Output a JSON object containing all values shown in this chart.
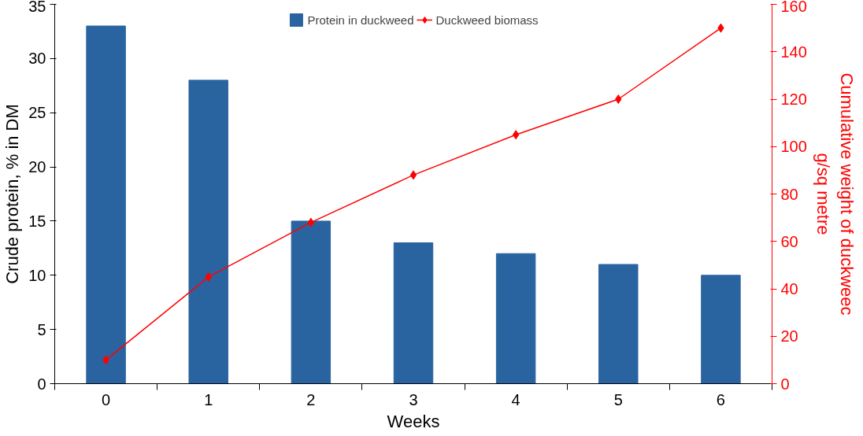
{
  "chart_data": {
    "type": "bar",
    "xlabel": "Weeks",
    "ylabel": "Crude protein, % in DM",
    "y2label": "Cumulative weight of duckweec\ng/sq metre",
    "categories": [
      "0",
      "1",
      "2",
      "3",
      "4",
      "5",
      "6"
    ],
    "series": [
      {
        "name": "Protein in duckweed",
        "color": "#2a64a0",
        "values": [
          33,
          28,
          15,
          13,
          12,
          11,
          10
        ]
      },
      {
        "name": "Duckweed biomass",
        "type": "line",
        "axis": "y2",
        "color": "#ff0000",
        "marker": "diamond",
        "values": [
          10,
          45,
          68,
          88,
          105,
          120,
          150
        ]
      }
    ],
    "ylim": [
      0,
      35
    ],
    "yticks": [
      0,
      5,
      10,
      15,
      20,
      25,
      30,
      35
    ],
    "y2lim": [
      0,
      160
    ],
    "y2ticks": [
      0,
      20,
      40,
      60,
      80,
      100,
      120,
      140,
      160
    ],
    "legend": "top",
    "grid": false
  }
}
